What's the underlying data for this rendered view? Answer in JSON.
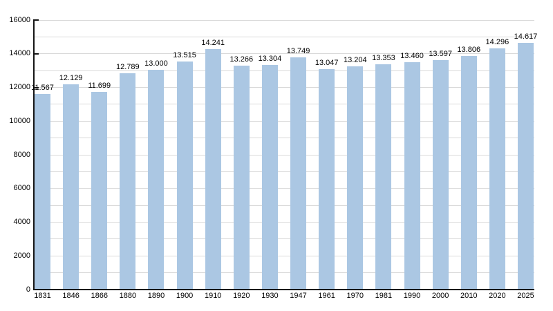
{
  "chart_data": {
    "type": "bar",
    "title": "",
    "xlabel": "",
    "ylabel": "",
    "categories": [
      "1831",
      "1846",
      "1866",
      "1880",
      "1890",
      "1900",
      "1910",
      "1920",
      "1930",
      "1947",
      "1961",
      "1970",
      "1981",
      "1990",
      "2000",
      "2010",
      "2020",
      "2025"
    ],
    "values": [
      11567,
      12129,
      11699,
      12789,
      13000,
      13515,
      14241,
      13266,
      13304,
      13749,
      13047,
      13204,
      13353,
      13460,
      13597,
      13806,
      14296,
      14617
    ],
    "value_labels": [
      "11.567",
      "12.129",
      "11.699",
      "12.789",
      "13.000",
      "13.515",
      "14.241",
      "13.266",
      "13.304",
      "13.749",
      "13.047",
      "13.204",
      "13.353",
      "13.460",
      "13.597",
      "13.806",
      "14.296",
      "14.617"
    ],
    "ylim": [
      0,
      16000
    ],
    "ytick_step": 2000,
    "ytick_labels": [
      "0",
      "2000",
      "4000",
      "6000",
      "8000",
      "10000",
      "12000",
      "14000",
      "16000"
    ],
    "grid": true,
    "minor_grid_step": 1000,
    "legend": null,
    "colors": {
      "bar_fill": "#abc7e3",
      "grid_line": "#d9d9d9",
      "axis_line": "#141414",
      "text": "#000000",
      "background": "#ffffff"
    }
  }
}
